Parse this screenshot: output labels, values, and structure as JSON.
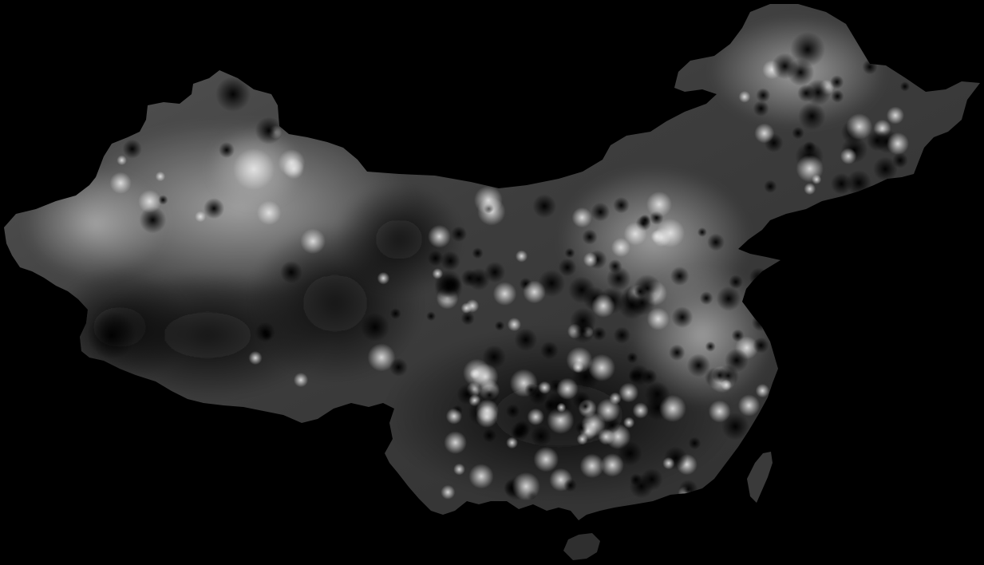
{
  "map": {
    "region": "china",
    "style": "grayscale-interpolated-surface",
    "colors": {
      "background": "#000000",
      "land_base": "#3a3a3a",
      "land_light": "#8a8a8a",
      "land_dark": "#1c1c1c",
      "hotspot_light": "#d8d8d8",
      "hotspot_dark": "#0a0a0a"
    }
  }
}
